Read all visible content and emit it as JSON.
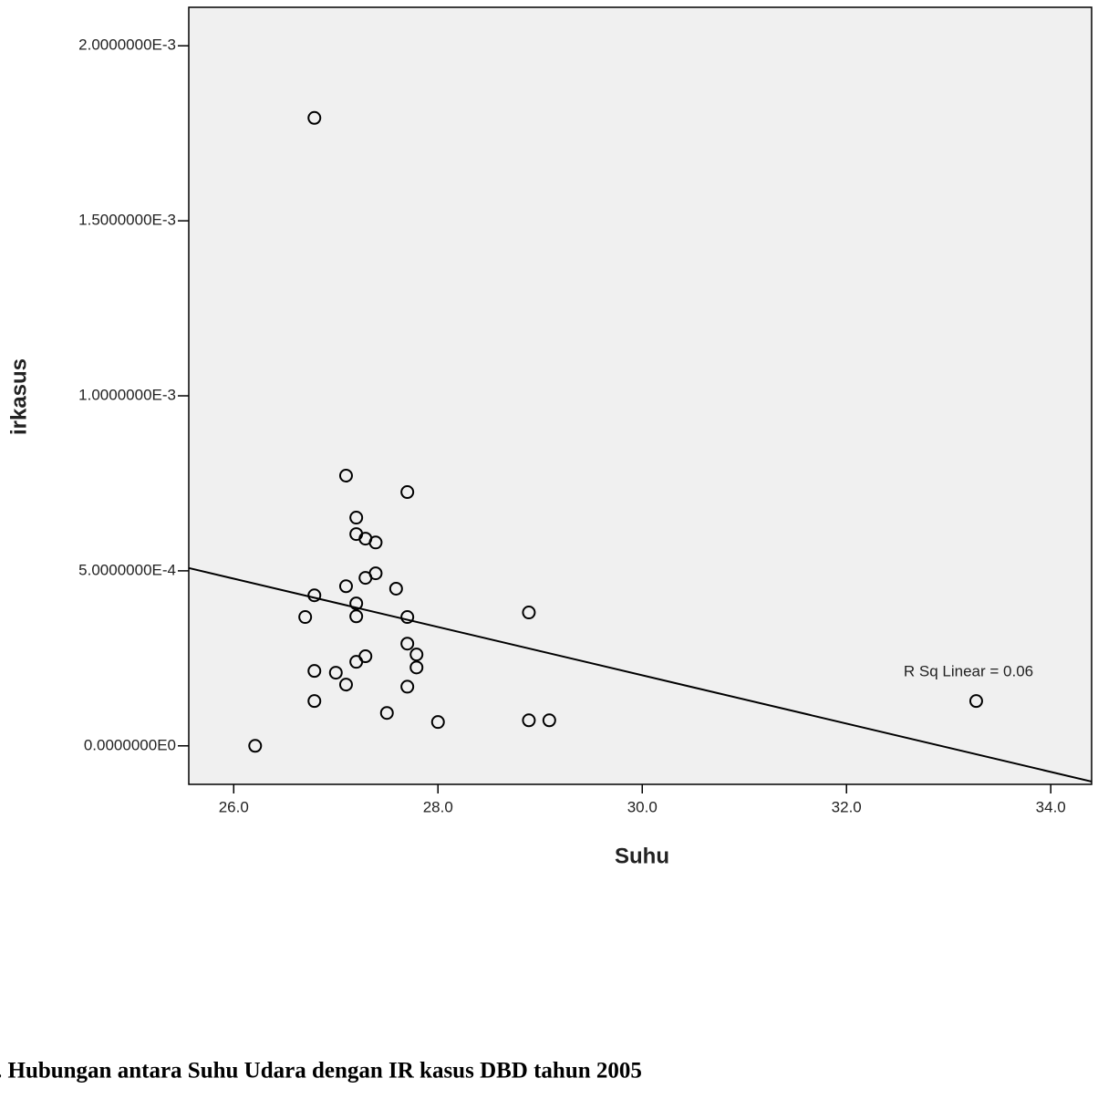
{
  "chart_data": {
    "type": "scatter",
    "x_label": "Suhu",
    "y_label": "irkasus",
    "annotation": "R Sq Linear = 0.06",
    "caption": ". Hubungan antara Suhu Udara dengan IR kasus DBD tahun 2005",
    "x": [
      26.79,
      27.1,
      27.7,
      27.2,
      27.2,
      27.29,
      27.39,
      27.39,
      27.29,
      27.1,
      27.59,
      26.79,
      27.2,
      27.2,
      26.7,
      27.7,
      28.89,
      27.7,
      27.79,
      27.29,
      27.2,
      27.79,
      26.79,
      27.0,
      27.1,
      27.7,
      26.79,
      33.27,
      27.5,
      28.89,
      29.09,
      28.0,
      26.21
    ],
    "values": [
      0.001794,
      0.000772,
      0.000725,
      0.000652,
      0.000605,
      0.000592,
      0.000581,
      0.000493,
      0.00048,
      0.000456,
      0.000449,
      0.00043,
      0.000407,
      0.00037,
      0.000368,
      0.000368,
      0.000381,
      0.000292,
      0.000261,
      0.000256,
      0.00024,
      0.000224,
      0.000214,
      0.000209,
      0.000175,
      0.000169,
      0.000128,
      0.000128,
      9.4e-05,
      7.3e-05,
      7.3e-05,
      6.8e-05,
      0.0
    ],
    "fit_line": {
      "x": [
        25.56,
        34.4
      ],
      "y": [
        0.000508,
        -0.000102
      ]
    },
    "color": "#000000",
    "xlim": [
      25.56,
      34.4
    ],
    "ylim": [
      -0.00011,
      0.00211
    ],
    "xticks": [
      {
        "value": 26,
        "label": "26.0"
      },
      {
        "value": 28,
        "label": "28.0"
      },
      {
        "value": 30,
        "label": "30.0"
      },
      {
        "value": 32,
        "label": "32.0"
      },
      {
        "value": 34,
        "label": "34.0"
      }
    ],
    "yticks": [
      {
        "value": 0,
        "label": "0.0000000E0"
      },
      {
        "value": 0.0005,
        "label": "5.0000000E-4"
      },
      {
        "value": 0.001,
        "label": "1.0000000E-3"
      },
      {
        "value": 0.0015,
        "label": "1.5000000E-3"
      },
      {
        "value": 0.002,
        "label": "2.0000000E-3"
      }
    ]
  }
}
